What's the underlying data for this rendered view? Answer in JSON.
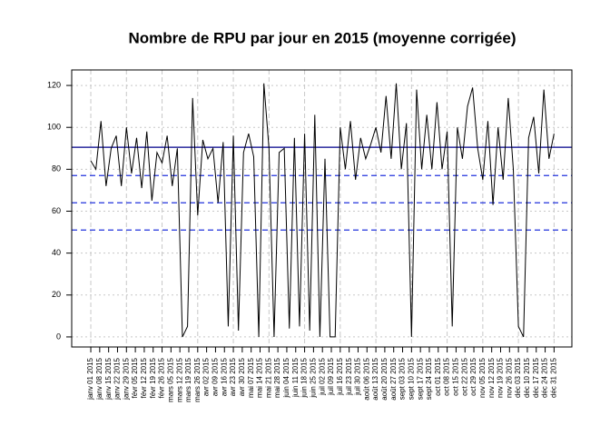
{
  "chart_data": {
    "type": "line",
    "title": "Nombre de RPU par jour en 2015 (moyenne corrigée)",
    "x": [
      1,
      5,
      9,
      13,
      17,
      21,
      25,
      29,
      33,
      37,
      41,
      45,
      49,
      53,
      57,
      61,
      65,
      69,
      73,
      77,
      81,
      85,
      89,
      93,
      97,
      101,
      105,
      109,
      113,
      117,
      121,
      125,
      129,
      133,
      137,
      141,
      145,
      149,
      153,
      157,
      161,
      165,
      169,
      173,
      177,
      181,
      185,
      189,
      193,
      197,
      201,
      205,
      209,
      213,
      217,
      221,
      225,
      229,
      233,
      237,
      241,
      245,
      249,
      253,
      257,
      261,
      265,
      269,
      273,
      277,
      281,
      285,
      289,
      293,
      297,
      301,
      305,
      309,
      313,
      317,
      321,
      325,
      329,
      333,
      337,
      341,
      345,
      349,
      353,
      357,
      361,
      365
    ],
    "series": [
      {
        "color": "#000000",
        "values": [
          84,
          80,
          103,
          72,
          90,
          96,
          72,
          100,
          78,
          95,
          71,
          98,
          65,
          88,
          83,
          96,
          72,
          90,
          0,
          5,
          114,
          58,
          94,
          85,
          90,
          64,
          93,
          5,
          96,
          3,
          88,
          97,
          86,
          0,
          121,
          90,
          0,
          88,
          90,
          4,
          95,
          5,
          97,
          3,
          106,
          0,
          85,
          0,
          0,
          100,
          80,
          103,
          75,
          95,
          85,
          92,
          100,
          88,
          115,
          85,
          121,
          80,
          102,
          0,
          118,
          80,
          106,
          80,
          112,
          80,
          98,
          5,
          100,
          85,
          110,
          119,
          90,
          75,
          103,
          63,
          100,
          75,
          114,
          80,
          5,
          0,
          95,
          105,
          78,
          118,
          85,
          97
        ]
      }
    ],
    "reference_lines": [
      {
        "value": 90.5,
        "style": "solid",
        "color": "#00008b"
      },
      {
        "value": 77,
        "style": "dashed",
        "color": "#2233dd"
      },
      {
        "value": 64,
        "style": "dashed",
        "color": "#2233dd"
      },
      {
        "value": 51,
        "style": "dashed",
        "color": "#2233dd"
      }
    ],
    "xlim": [
      -14,
      379
    ],
    "ylim": [
      -4.8,
      127.4
    ],
    "yticks": [
      0,
      20,
      40,
      60,
      80,
      100,
      120
    ],
    "xticks": [
      {
        "value": 1,
        "label": "janv 01 2015"
      },
      {
        "value": 8,
        "label": "janv 08 2015"
      },
      {
        "value": 15,
        "label": "janv 15 2015"
      },
      {
        "value": 22,
        "label": "janv 22 2015"
      },
      {
        "value": 29,
        "label": "janv 29 2015"
      },
      {
        "value": 36,
        "label": "févr 05 2015"
      },
      {
        "value": 43,
        "label": "févr 12 2015"
      },
      {
        "value": 50,
        "label": "févr 19 2015"
      },
      {
        "value": 57,
        "label": "févr 26 2015"
      },
      {
        "value": 64,
        "label": "mars 05 2015"
      },
      {
        "value": 71,
        "label": "mars 12 2015"
      },
      {
        "value": 78,
        "label": "mars 19 2015"
      },
      {
        "value": 85,
        "label": "mars 26 2015"
      },
      {
        "value": 92,
        "label": "avr 02 2015"
      },
      {
        "value": 99,
        "label": "avr 09 2015"
      },
      {
        "value": 106,
        "label": "avr 16 2015"
      },
      {
        "value": 113,
        "label": "avr 23 2015"
      },
      {
        "value": 120,
        "label": "avr 30 2015"
      },
      {
        "value": 127,
        "label": "mai 07 2015"
      },
      {
        "value": 134,
        "label": "mai 14 2015"
      },
      {
        "value": 141,
        "label": "mai 21 2015"
      },
      {
        "value": 148,
        "label": "mai 28 2015"
      },
      {
        "value": 155,
        "label": "juin 04 2015"
      },
      {
        "value": 162,
        "label": "juin 11 2015"
      },
      {
        "value": 169,
        "label": "juin 18 2015"
      },
      {
        "value": 176,
        "label": "juin 25 2015"
      },
      {
        "value": 183,
        "label": "juil 02 2015"
      },
      {
        "value": 190,
        "label": "juil 09 2015"
      },
      {
        "value": 197,
        "label": "juil 16 2015"
      },
      {
        "value": 204,
        "label": "juil 23 2015"
      },
      {
        "value": 211,
        "label": "juil 30 2015"
      },
      {
        "value": 218,
        "label": "août 06 2015"
      },
      {
        "value": 225,
        "label": "août 13 2015"
      },
      {
        "value": 232,
        "label": "août 20 2015"
      },
      {
        "value": 239,
        "label": "août 27 2015"
      },
      {
        "value": 246,
        "label": "sept 03 2015"
      },
      {
        "value": 253,
        "label": "sept 10 2015"
      },
      {
        "value": 260,
        "label": "sept 17 2015"
      },
      {
        "value": 267,
        "label": "sept 24 2015"
      },
      {
        "value": 274,
        "label": "oct 01 2015"
      },
      {
        "value": 281,
        "label": "oct 08 2015"
      },
      {
        "value": 288,
        "label": "oct 15 2015"
      },
      {
        "value": 295,
        "label": "oct 22 2015"
      },
      {
        "value": 302,
        "label": "oct 29 2015"
      },
      {
        "value": 309,
        "label": "nov 05 2015"
      },
      {
        "value": 316,
        "label": "nov 12 2015"
      },
      {
        "value": 323,
        "label": "nov 19 2015"
      },
      {
        "value": 330,
        "label": "nov 26 2015"
      },
      {
        "value": 337,
        "label": "déc 03 2015"
      },
      {
        "value": 344,
        "label": "déc 10 2015"
      },
      {
        "value": 351,
        "label": "déc 17 2015"
      },
      {
        "value": 358,
        "label": "déc 24 2015"
      },
      {
        "value": 365,
        "label": "déc 31 2015"
      }
    ],
    "grid": true
  }
}
